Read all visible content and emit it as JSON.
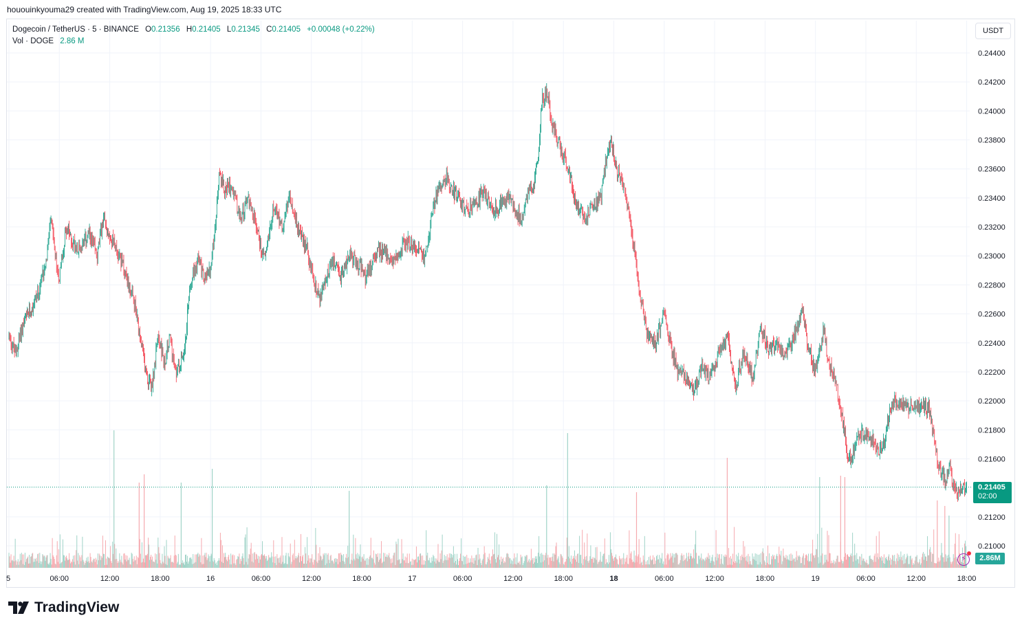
{
  "header": {
    "attribution": "hououinkyouma29 created with TradingView.com, Aug 19, 2025 18:33 UTC"
  },
  "legend": {
    "symbol": "Dogecoin / TetherUS · 5 · BINANCE",
    "open_label": "O",
    "open": "0.21356",
    "high_label": "H",
    "high": "0.21405",
    "low_label": "L",
    "low": "0.21345",
    "close_label": "C",
    "close": "0.21405",
    "change": "+0.00048 (+0.22%)",
    "vol_label": "Vol · DOGE",
    "vol_value": "2.86 M"
  },
  "price_axis": {
    "currency": "USDT",
    "last_price": "0.21405",
    "countdown": "02:00",
    "last_volume": "2.86M"
  },
  "brand": {
    "name": "TradingView"
  },
  "colors": {
    "up": "#089981",
    "down": "#f23645",
    "vol_up": "#9fd3c7",
    "vol_down": "#f6a9ae",
    "grid": "#f0f3fa",
    "text": "#131722"
  },
  "chart_data": {
    "type": "candlestick",
    "title": "Dogecoin / TetherUS · 5 · BINANCE",
    "timeframe": "5 minutes",
    "ylim": [
      0.2084,
      0.2464
    ],
    "y_ticks": [
      "0.24400",
      "0.24200",
      "0.24000",
      "0.23800",
      "0.23600",
      "0.23400",
      "0.23200",
      "0.23000",
      "0.22800",
      "0.22600",
      "0.22400",
      "0.22200",
      "0.22000",
      "0.21800",
      "0.21600",
      "0.21200",
      "0.21000"
    ],
    "x_ticks": [
      "5",
      "06:00",
      "12:00",
      "18:00",
      "16",
      "06:00",
      "12:00",
      "18:00",
      "17",
      "06:00",
      "12:00",
      "18:00",
      "18",
      "06:00",
      "12:00",
      "18:00",
      "19",
      "06:00",
      "12:00",
      "18:00"
    ],
    "x_tick_hours": [
      0,
      6,
      12,
      18,
      24,
      30,
      36,
      42,
      48,
      54,
      60,
      66,
      72,
      78,
      84,
      90,
      96,
      102,
      108,
      114
    ],
    "x_range_hours": [
      0,
      114.6
    ],
    "last_price_line": 0.21405,
    "price_path": [
      [
        0.0,
        0.2245
      ],
      [
        0.8,
        0.2232
      ],
      [
        1.5,
        0.225
      ],
      [
        2.5,
        0.2262
      ],
      [
        3.5,
        0.2275
      ],
      [
        4.5,
        0.23
      ],
      [
        5.0,
        0.2325
      ],
      [
        5.6,
        0.2295
      ],
      [
        6.0,
        0.2285
      ],
      [
        6.8,
        0.232
      ],
      [
        7.5,
        0.231
      ],
      [
        8.5,
        0.2305
      ],
      [
        9.5,
        0.2315
      ],
      [
        10.5,
        0.23
      ],
      [
        11.2,
        0.2325
      ],
      [
        12.0,
        0.2315
      ],
      [
        12.8,
        0.2305
      ],
      [
        13.5,
        0.2295
      ],
      [
        14.5,
        0.2275
      ],
      [
        15.0,
        0.2265
      ],
      [
        15.5,
        0.2245
      ],
      [
        16.0,
        0.223
      ],
      [
        16.5,
        0.2215
      ],
      [
        17.0,
        0.221
      ],
      [
        17.8,
        0.2245
      ],
      [
        18.5,
        0.2225
      ],
      [
        19.2,
        0.2245
      ],
      [
        19.8,
        0.2218
      ],
      [
        20.5,
        0.2228
      ],
      [
        21.0,
        0.224
      ],
      [
        21.5,
        0.228
      ],
      [
        22.5,
        0.2298
      ],
      [
        23.2,
        0.2285
      ],
      [
        24.0,
        0.229
      ],
      [
        24.6,
        0.2325
      ],
      [
        25.0,
        0.2355
      ],
      [
        25.8,
        0.2345
      ],
      [
        26.5,
        0.235
      ],
      [
        27.5,
        0.2325
      ],
      [
        28.5,
        0.234
      ],
      [
        29.5,
        0.232
      ],
      [
        30.0,
        0.2305
      ],
      [
        30.5,
        0.23
      ],
      [
        31.5,
        0.2335
      ],
      [
        32.5,
        0.232
      ],
      [
        33.4,
        0.234
      ],
      [
        34.0,
        0.2325
      ],
      [
        35.0,
        0.231
      ],
      [
        35.5,
        0.2305
      ],
      [
        36.0,
        0.229
      ],
      [
        37.0,
        0.227
      ],
      [
        37.8,
        0.2285
      ],
      [
        38.5,
        0.2295
      ],
      [
        39.5,
        0.2285
      ],
      [
        40.5,
        0.23
      ],
      [
        41.5,
        0.2295
      ],
      [
        42.5,
        0.2285
      ],
      [
        43.5,
        0.23
      ],
      [
        44.5,
        0.2305
      ],
      [
        45.5,
        0.2295
      ],
      [
        46.5,
        0.2305
      ],
      [
        47.5,
        0.231
      ],
      [
        48.5,
        0.2305
      ],
      [
        49.5,
        0.23
      ],
      [
        50.3,
        0.2325
      ],
      [
        51.0,
        0.2345
      ],
      [
        52.0,
        0.2355
      ],
      [
        52.5,
        0.2348
      ],
      [
        53.5,
        0.234
      ],
      [
        54.5,
        0.233
      ],
      [
        55.5,
        0.2335
      ],
      [
        56.5,
        0.2345
      ],
      [
        57.5,
        0.233
      ],
      [
        58.5,
        0.2335
      ],
      [
        59.5,
        0.234
      ],
      [
        60.5,
        0.233
      ],
      [
        61.0,
        0.2325
      ],
      [
        61.8,
        0.2345
      ],
      [
        62.5,
        0.235
      ],
      [
        63.0,
        0.237
      ],
      [
        63.5,
        0.241
      ],
      [
        64.1,
        0.2412
      ],
      [
        64.6,
        0.2392
      ],
      [
        65.3,
        0.238
      ],
      [
        66.0,
        0.237
      ],
      [
        67.0,
        0.235
      ],
      [
        67.5,
        0.2335
      ],
      [
        68.2,
        0.233
      ],
      [
        68.8,
        0.2325
      ],
      [
        69.5,
        0.2335
      ],
      [
        70.5,
        0.234
      ],
      [
        71.0,
        0.2365
      ],
      [
        71.6,
        0.238
      ],
      [
        72.3,
        0.236
      ],
      [
        73.0,
        0.235
      ],
      [
        73.8,
        0.233
      ],
      [
        74.5,
        0.23
      ],
      [
        75.0,
        0.228
      ],
      [
        75.5,
        0.226
      ],
      [
        76.0,
        0.2245
      ],
      [
        77.0,
        0.224
      ],
      [
        78.0,
        0.2263
      ],
      [
        78.5,
        0.2245
      ],
      [
        79.5,
        0.2222
      ],
      [
        80.5,
        0.2218
      ],
      [
        81.5,
        0.2205
      ],
      [
        82.5,
        0.2225
      ],
      [
        83.5,
        0.2215
      ],
      [
        84.5,
        0.2235
      ],
      [
        85.5,
        0.2245
      ],
      [
        86.5,
        0.221
      ],
      [
        87.5,
        0.2235
      ],
      [
        88.5,
        0.2215
      ],
      [
        89.5,
        0.225
      ],
      [
        90.5,
        0.2235
      ],
      [
        91.5,
        0.224
      ],
      [
        92.5,
        0.223
      ],
      [
        93.5,
        0.2245
      ],
      [
        94.5,
        0.2262
      ],
      [
        95.0,
        0.224
      ],
      [
        96.0,
        0.222
      ],
      [
        97.0,
        0.225
      ],
      [
        97.5,
        0.2228
      ],
      [
        98.5,
        0.221
      ],
      [
        99.0,
        0.2195
      ],
      [
        99.5,
        0.2175
      ],
      [
        100.0,
        0.2158
      ],
      [
        100.5,
        0.2165
      ],
      [
        101.0,
        0.2175
      ],
      [
        102.0,
        0.2178
      ],
      [
        103.0,
        0.2172
      ],
      [
        103.5,
        0.2165
      ],
      [
        104.0,
        0.2168
      ],
      [
        105.0,
        0.2195
      ],
      [
        105.5,
        0.22
      ],
      [
        106.5,
        0.2198
      ],
      [
        107.5,
        0.2195
      ],
      [
        108.5,
        0.2195
      ],
      [
        109.5,
        0.2195
      ],
      [
        110.0,
        0.218
      ],
      [
        110.5,
        0.216
      ],
      [
        111.0,
        0.215
      ],
      [
        111.5,
        0.2145
      ],
      [
        112.0,
        0.216
      ],
      [
        112.3,
        0.2142
      ],
      [
        112.8,
        0.2135
      ],
      [
        113.5,
        0.214
      ],
      [
        114.0,
        0.21405
      ]
    ],
    "volume_spikes": [
      [
        12.5,
        "up",
        1.0
      ],
      [
        15.5,
        "down",
        0.62
      ],
      [
        16.1,
        "down",
        0.68
      ],
      [
        20.5,
        "up",
        0.62
      ],
      [
        24.2,
        "up",
        0.72
      ],
      [
        40.5,
        "up",
        0.56
      ],
      [
        64.0,
        "up",
        0.6
      ],
      [
        66.5,
        "up",
        0.98
      ],
      [
        74.7,
        "down",
        0.55
      ],
      [
        85.5,
        "down",
        0.8
      ],
      [
        96.5,
        "up",
        0.66
      ],
      [
        99.0,
        "down",
        0.67
      ],
      [
        99.5,
        "down",
        0.66
      ],
      [
        110.5,
        "down",
        0.49
      ],
      [
        111.4,
        "down",
        0.45
      ],
      [
        111.9,
        "up",
        0.38
      ]
    ]
  }
}
